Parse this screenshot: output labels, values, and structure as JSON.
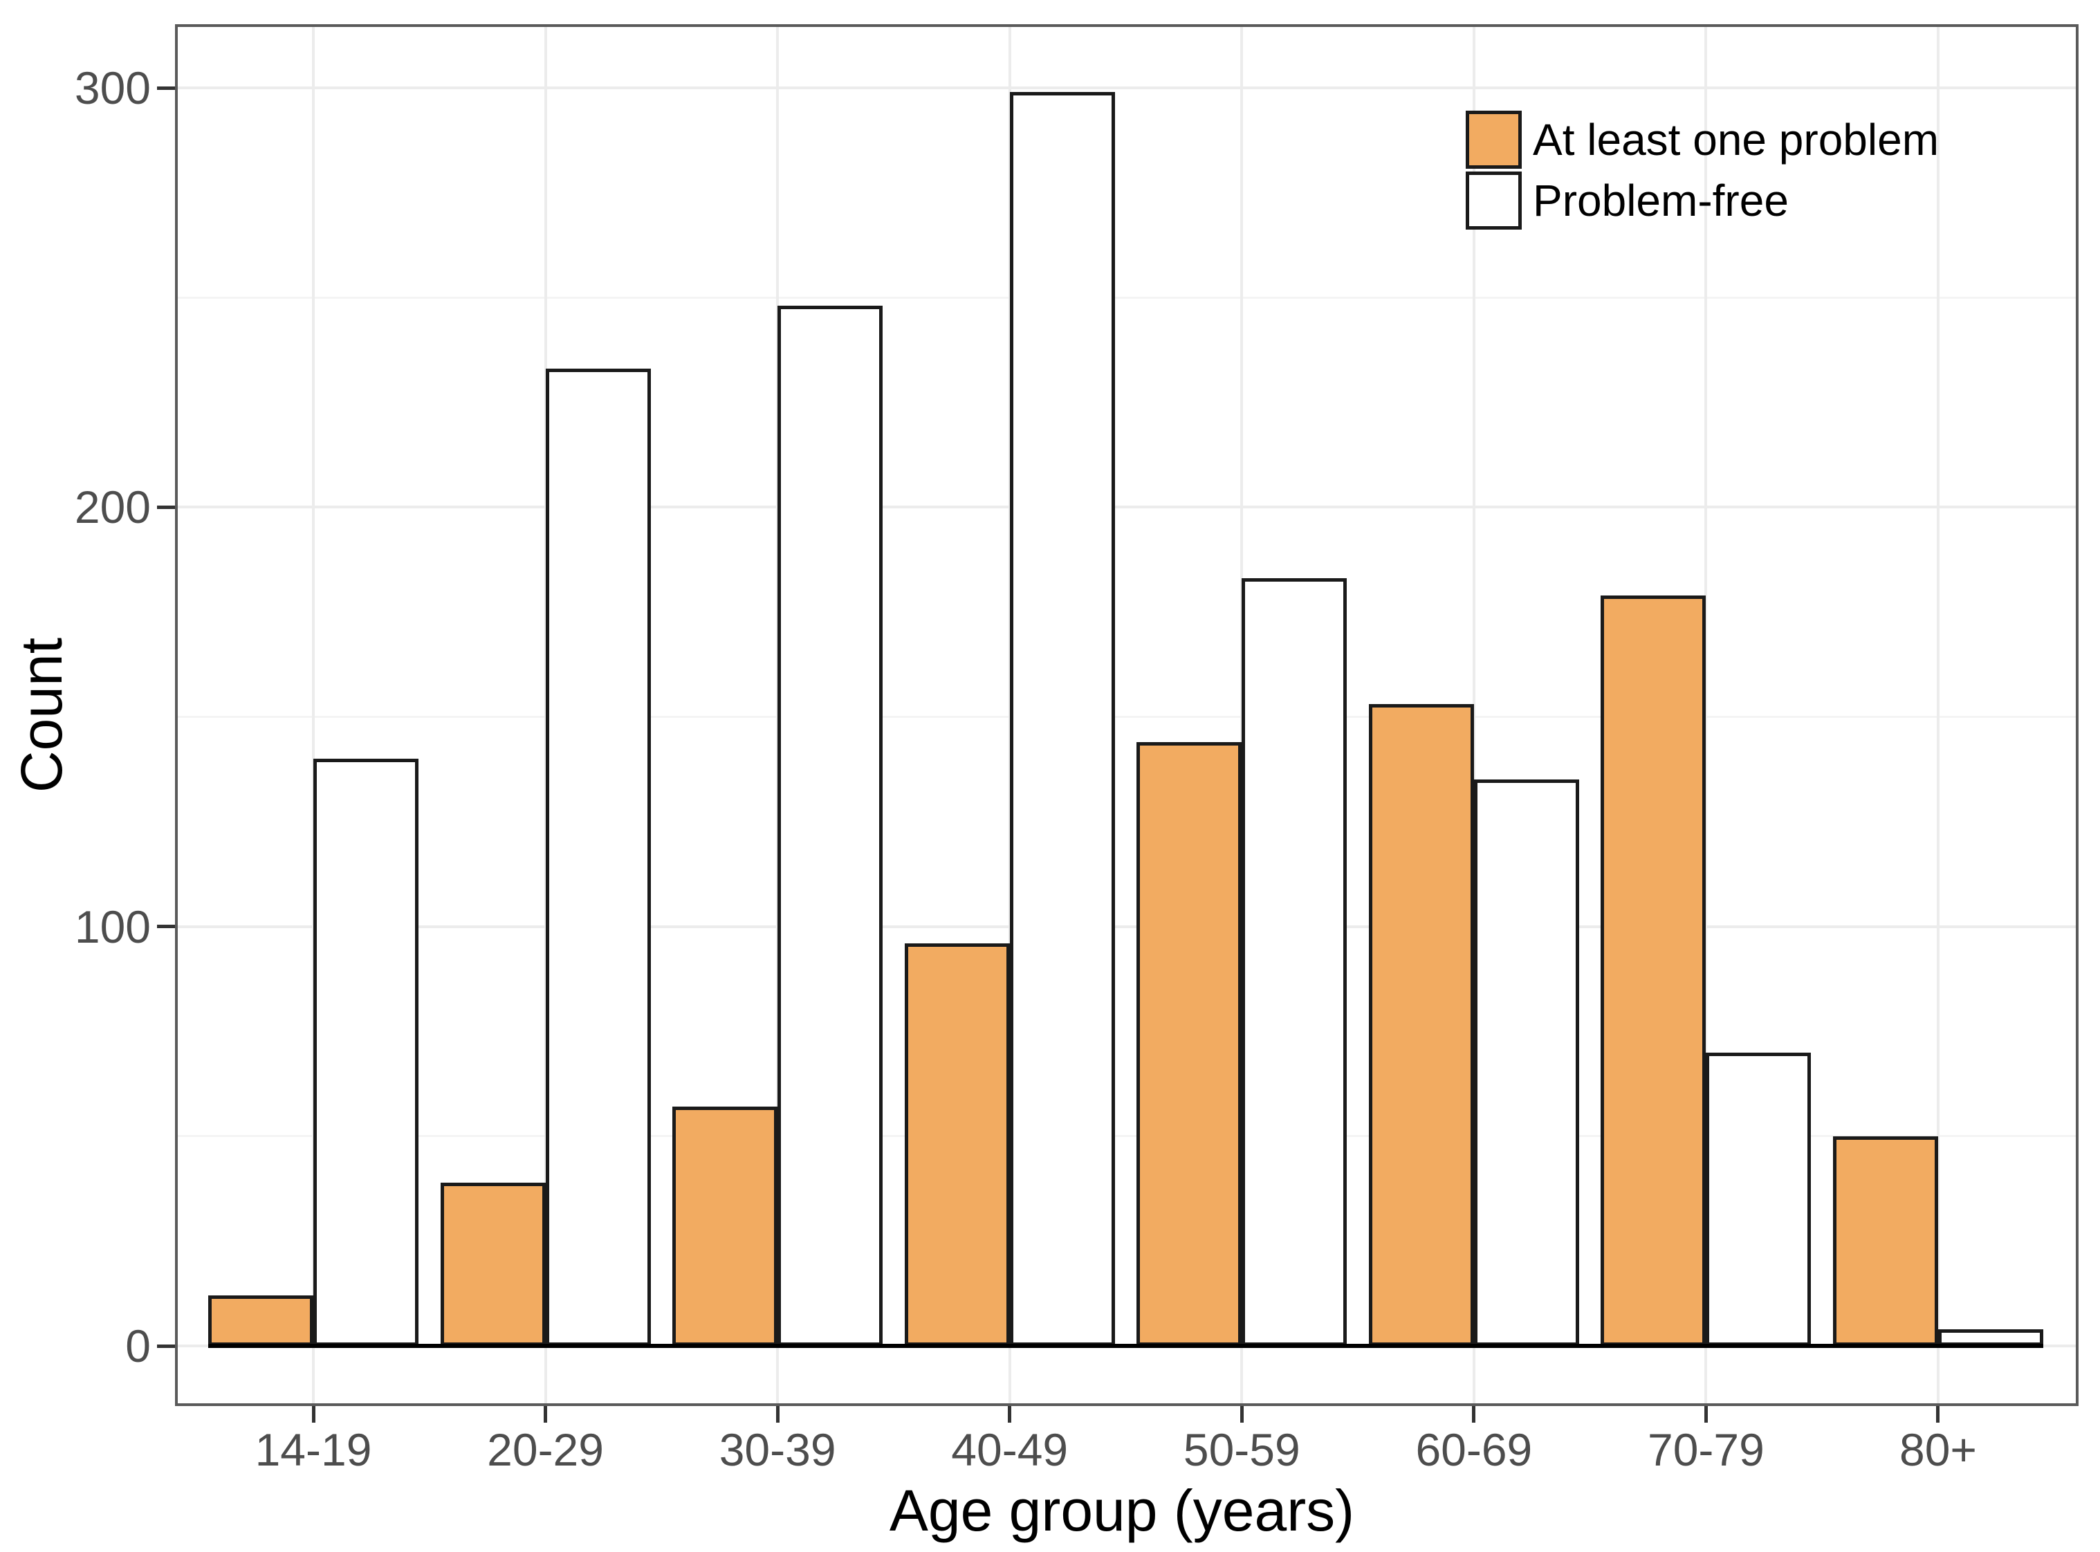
{
  "figure": {
    "y_axis": {
      "title": "Count",
      "tick_labels": [
        "0",
        "100",
        "200",
        "300"
      ],
      "tick_values": [
        0,
        100,
        200,
        300
      ],
      "minor_tick_values": [
        50,
        150,
        250
      ]
    },
    "x_axis": {
      "title": "Age group (years)",
      "tick_labels": [
        "14-19",
        "20-29",
        "30-39",
        "40-49",
        "50-59",
        "60-69",
        "70-79",
        "80+"
      ]
    },
    "legend": {
      "items": [
        {
          "label": "At least one problem",
          "color": "#F2AB61"
        },
        {
          "label": "Problem-free",
          "color": "#FFFFFF"
        }
      ]
    },
    "colors": {
      "bar_fill_problem": "#F2AB61",
      "bar_fill_free": "#FFFFFF",
      "bar_outline": "#1A1A1A",
      "zero_line": "#000000",
      "panel_border": "#5A5A5A",
      "grid_major": "#ECECEC",
      "grid_minor": "#F4F4F4",
      "tick_text": "#4D4D4D",
      "axis_title_text": "#000000"
    }
  },
  "chart_data": {
    "type": "bar",
    "title": "",
    "categories": [
      "14-19",
      "20-29",
      "30-39",
      "40-49",
      "50-59",
      "60-69",
      "70-79",
      "80+"
    ],
    "series": [
      {
        "name": "At least one problem",
        "color": "#F2AB61",
        "values": [
          12,
          39,
          57,
          96,
          144,
          153,
          179,
          50
        ]
      },
      {
        "name": "Problem-free",
        "color": "#FFFFFF",
        "values": [
          140,
          233,
          248,
          299,
          183,
          135,
          70,
          4
        ]
      }
    ],
    "xlabel": "Age group (years)",
    "ylabel": "Count",
    "ylim": [
      0,
      300
    ],
    "yticks": [
      0,
      100,
      200,
      300
    ],
    "minor_yticks": [
      50,
      150,
      250
    ],
    "grid": "horizontal major+minor and vertical major, light gray on white panel",
    "legend_position": "top-right inside plot",
    "bar_layout": "dodged pairs, black outline, tick at pair center"
  }
}
